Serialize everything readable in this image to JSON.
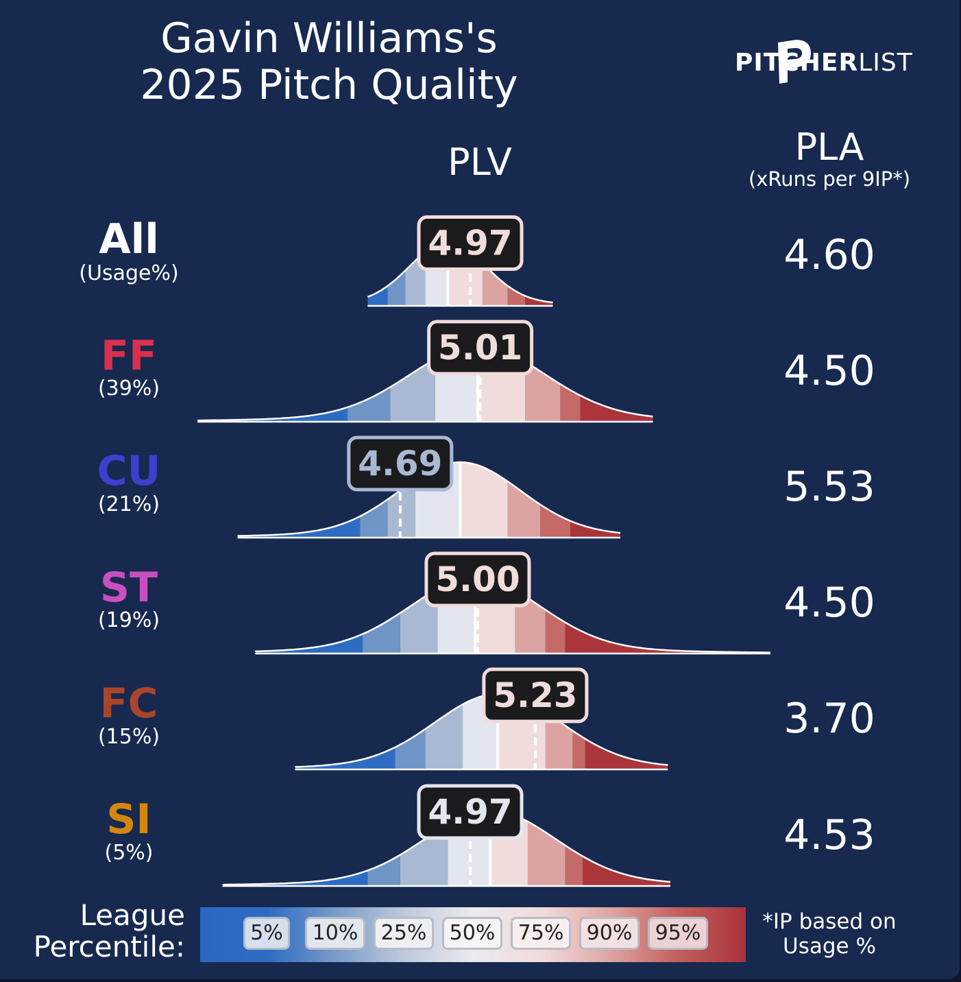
{
  "title": {
    "line1": "Gavin Williams's",
    "line2": "2025 Pitch Quality"
  },
  "brand": {
    "bold": "PITCHER",
    "light": "LIST",
    "icon": "pitcherlist-p-logo-icon"
  },
  "headers": {
    "plv": "PLV",
    "pla": "PLA",
    "pla_sub": "(xRuns per 9IP*)"
  },
  "colors": {
    "background": "#17294f",
    "scale": [
      "#2e6cc4",
      "#6f95c6",
      "#a9b9d3",
      "#e3e6ee",
      "#f1dcdc",
      "#dba4a2",
      "#c46a68",
      "#aa363b"
    ]
  },
  "chart_data": {
    "type": "ridgeline",
    "percentile_levels": [
      5,
      10,
      25,
      50,
      75,
      90,
      95
    ],
    "rows": [
      {
        "pitch": "All",
        "usage": "(Usage%)",
        "color": "#ffffff",
        "plv": "4.97",
        "plv_value": 4.97,
        "pla": "4.60",
        "cuts": [
          4.64,
          4.71,
          4.79,
          4.88,
          5.02,
          5.12,
          5.19
        ],
        "spread": 0.15,
        "range": [
          4.56,
          5.3
        ],
        "heightScale": 0.85
      },
      {
        "pitch": "FF",
        "usage": "(39%)",
        "color": "#d9304f",
        "plv": "5.01",
        "plv_value": 5.01,
        "pla": "4.50",
        "cuts": [
          4.48,
          4.65,
          4.83,
          5.0,
          5.19,
          5.33,
          5.41
        ],
        "spread": 0.27,
        "range": [
          3.88,
          5.7
        ],
        "heightScale": 1.0
      },
      {
        "pitch": "CU",
        "usage": "(21%)",
        "color": "#3d3fcf",
        "plv": "4.69",
        "plv_value": 4.69,
        "pla": "5.53",
        "cuts": [
          4.53,
          4.64,
          4.75,
          4.93,
          5.12,
          5.25,
          5.37
        ],
        "spread": 0.24,
        "range": [
          4.04,
          5.57
        ],
        "heightScale": 1.0
      },
      {
        "pitch": "ST",
        "usage": "(19%)",
        "color": "#c94fbf",
        "plv": "5.00",
        "plv_value": 5.0,
        "pla": "4.50",
        "cuts": [
          4.54,
          4.69,
          4.84,
          4.99,
          5.15,
          5.27,
          5.35
        ],
        "spread": 0.26,
        "range": [
          4.11,
          6.17
        ],
        "heightScale": 1.0
      },
      {
        "pitch": "FC",
        "usage": "(15%)",
        "color": "#a9452c",
        "plv": "5.23",
        "plv_value": 5.23,
        "pla": "3.70",
        "cuts": [
          4.67,
          4.79,
          4.94,
          5.08,
          5.27,
          5.38,
          5.43
        ],
        "spread": 0.25,
        "range": [
          4.27,
          5.76
        ],
        "heightScale": 1.0
      },
      {
        "pitch": "SI",
        "usage": "(5%)",
        "color": "#d4860e",
        "plv": "4.97",
        "plv_value": 4.97,
        "pla": "4.53",
        "cuts": [
          4.56,
          4.69,
          4.88,
          5.05,
          5.2,
          5.35,
          5.42
        ],
        "spread": 0.26,
        "range": [
          3.98,
          5.77
        ],
        "heightScale": 1.0
      }
    ]
  },
  "legend": {
    "title_line1": "League",
    "title_line2": "Percentile:",
    "chips": [
      "5%",
      "10%",
      "25%",
      "50%",
      "75%",
      "90%",
      "95%"
    ],
    "note_line1": "*IP based on",
    "note_line2": "Usage %"
  }
}
